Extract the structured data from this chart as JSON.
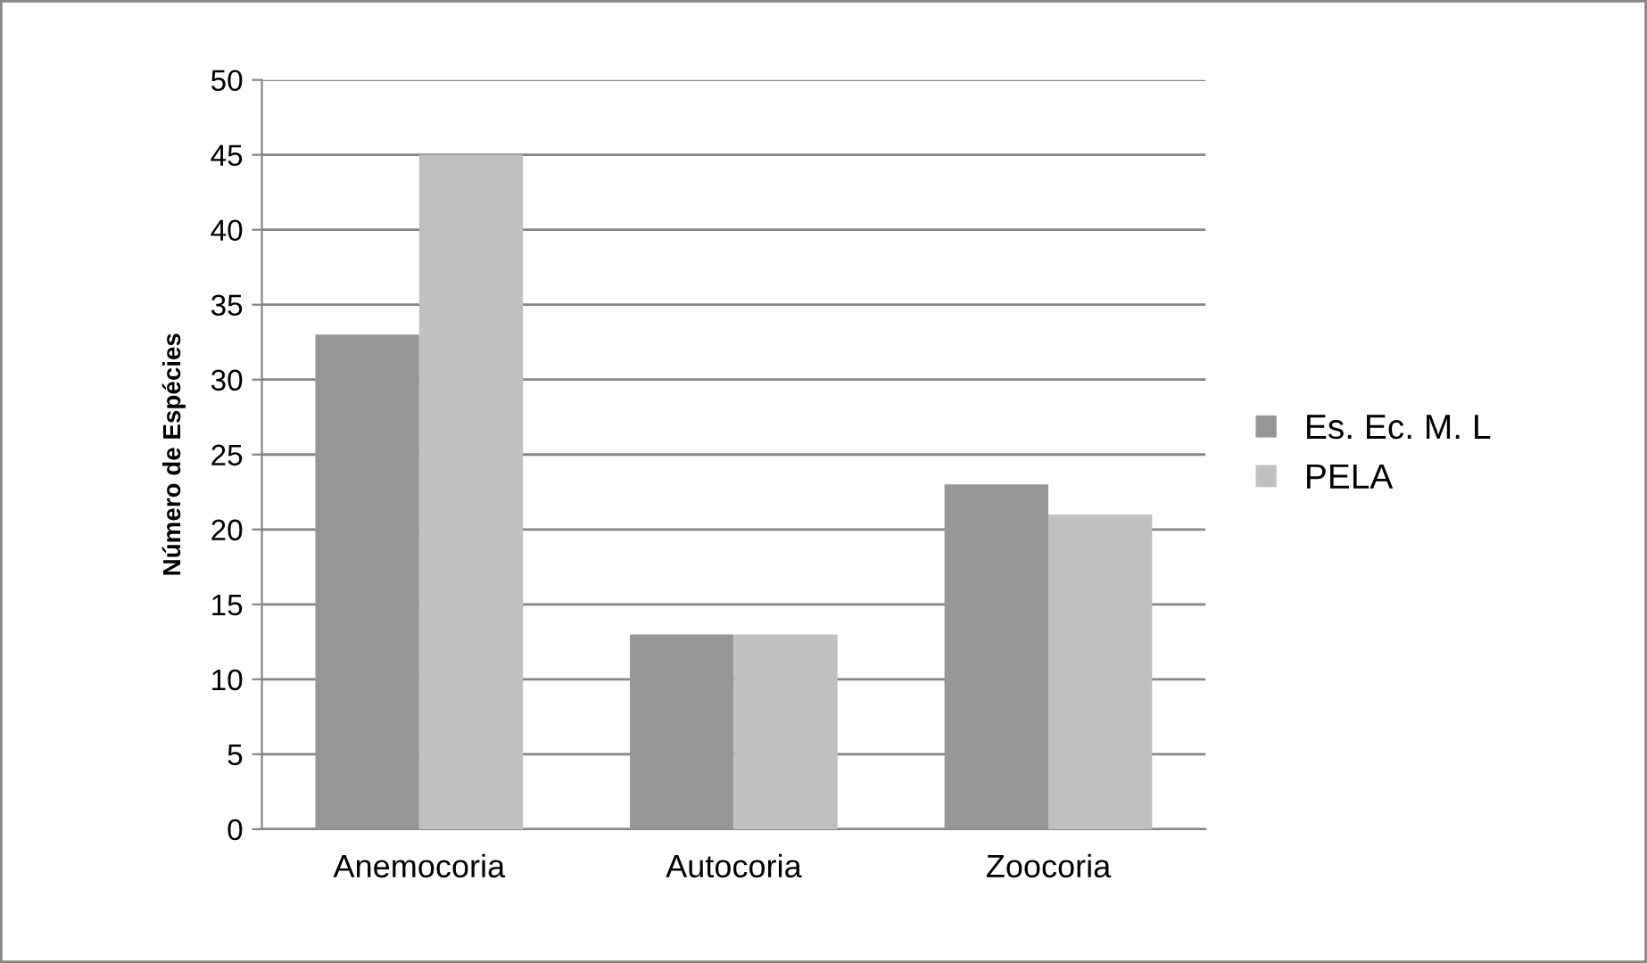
{
  "chart_data": {
    "type": "bar",
    "ylabel": "Número de Espécies",
    "categories": [
      "Anemocoria",
      "Autocoria",
      "Zoocoria"
    ],
    "series": [
      {
        "name": "Es. Ec. M. L",
        "color": "#969696",
        "values": [
          33,
          13,
          23
        ]
      },
      {
        "name": "PELA",
        "color": "#c0c0c0",
        "values": [
          45,
          13,
          21
        ]
      }
    ],
    "ylim": [
      0,
      50
    ],
    "yticks": [
      0,
      5,
      10,
      15,
      20,
      25,
      30,
      35,
      40,
      45,
      50
    ],
    "grid": "y",
    "legend": "right"
  }
}
